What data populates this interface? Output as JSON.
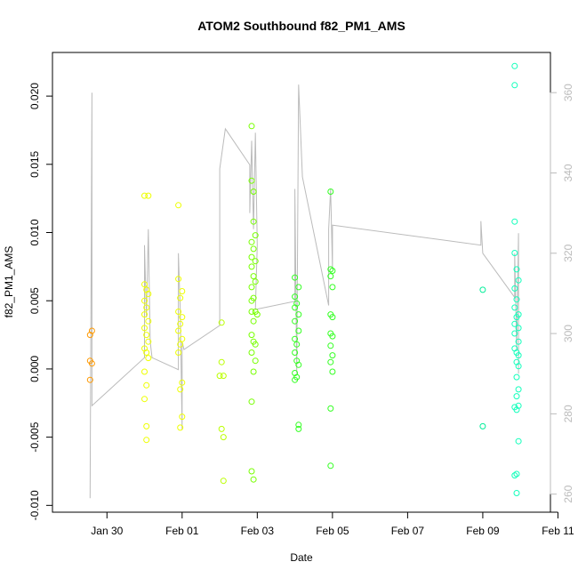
{
  "chart_data": {
    "type": "scatter",
    "title": "ATOM2 Southbound f82_PM1_AMS",
    "xlabel": "Date",
    "ylabel": "f82_PM1_AMS",
    "x_ticks": [
      "Jan 30",
      "Feb 01",
      "Feb 03",
      "Feb 05",
      "Feb 07",
      "Feb 09",
      "Feb 11"
    ],
    "x_range_days": [
      -0.45,
      12.8
    ],
    "y_range": [
      -0.0105,
      0.0232
    ],
    "y_ticks": [
      -0.01,
      -0.005,
      0.0,
      0.005,
      0.01,
      0.015,
      0.02
    ],
    "y_tick_labels": [
      "-0.010",
      "-0.005",
      "0.000",
      "0.005",
      "0.010",
      "0.015",
      "0.020"
    ],
    "y2_range": [
      255.5,
      370
    ],
    "y2_ticks": [
      260,
      280,
      300,
      320,
      340,
      360
    ],
    "y2_tick_labels": [
      "260",
      "280",
      "300",
      "320",
      "340",
      "360"
    ],
    "grid": false,
    "legend": "none",
    "series": [
      {
        "color": "#ff9900",
        "points": [
          [
            0.55,
            0.0025
          ],
          [
            0.6,
            0.0028
          ],
          [
            0.55,
            0.0006
          ],
          [
            0.6,
            0.0004
          ],
          [
            0.55,
            -0.0008
          ]
        ]
      },
      {
        "color": "#eeff00",
        "points": [
          [
            2.0,
            0.0127
          ],
          [
            2.1,
            0.0127
          ],
          [
            2.0,
            0.0062
          ],
          [
            2.05,
            0.0058
          ],
          [
            2.1,
            0.0055
          ],
          [
            2.0,
            0.005
          ],
          [
            2.05,
            0.0045
          ],
          [
            2.0,
            0.004
          ],
          [
            2.1,
            0.0035
          ],
          [
            2.0,
            0.003
          ],
          [
            2.05,
            0.0025
          ],
          [
            2.1,
            0.002
          ],
          [
            2.0,
            0.0015
          ],
          [
            2.05,
            0.0012
          ],
          [
            2.1,
            0.0008
          ],
          [
            2.0,
            -0.0002
          ],
          [
            2.05,
            -0.0012
          ],
          [
            2.0,
            -0.0022
          ],
          [
            2.05,
            -0.0042
          ],
          [
            2.05,
            -0.0052
          ],
          [
            2.9,
            0.012
          ],
          [
            2.9,
            0.0066
          ],
          [
            3.0,
            0.0057
          ],
          [
            2.95,
            0.0052
          ],
          [
            2.9,
            0.0042
          ],
          [
            3.0,
            0.0038
          ],
          [
            2.95,
            0.0033
          ],
          [
            2.9,
            0.0028
          ],
          [
            3.0,
            0.0022
          ],
          [
            2.95,
            0.0018
          ],
          [
            2.9,
            0.0012
          ],
          [
            3.0,
            -0.001
          ],
          [
            2.95,
            -0.0015
          ],
          [
            3.0,
            -0.0035
          ],
          [
            2.95,
            -0.0043
          ]
        ]
      },
      {
        "color": "#bbff00",
        "points": [
          [
            4.05,
            0.0034
          ],
          [
            4.05,
            0.0005
          ],
          [
            4.0,
            -0.0005
          ],
          [
            4.1,
            -0.0005
          ],
          [
            4.05,
            -0.0044
          ],
          [
            4.1,
            -0.005
          ],
          [
            4.1,
            -0.0082
          ]
        ]
      },
      {
        "color": "#77ff00",
        "points": [
          [
            4.85,
            0.0178
          ],
          [
            4.85,
            0.0138
          ],
          [
            4.9,
            0.013
          ],
          [
            4.9,
            0.0108
          ],
          [
            4.95,
            0.0098
          ],
          [
            4.85,
            0.0093
          ],
          [
            4.9,
            0.0088
          ],
          [
            4.85,
            0.0082
          ],
          [
            4.95,
            0.0079
          ],
          [
            4.85,
            0.0075
          ],
          [
            4.9,
            0.0068
          ],
          [
            4.95,
            0.0064
          ],
          [
            4.85,
            0.006
          ],
          [
            4.9,
            0.0052
          ],
          [
            4.85,
            0.005
          ],
          [
            4.95,
            0.0042
          ],
          [
            4.85,
            0.0042
          ],
          [
            5.0,
            0.004
          ],
          [
            4.9,
            0.0035
          ],
          [
            4.85,
            0.0025
          ],
          [
            4.9,
            0.002
          ],
          [
            4.95,
            0.0018
          ],
          [
            4.85,
            0.0012
          ],
          [
            4.95,
            0.0006
          ],
          [
            4.9,
            -0.0002
          ],
          [
            4.85,
            -0.0024
          ],
          [
            4.85,
            -0.0075
          ],
          [
            4.9,
            -0.0081
          ]
        ]
      },
      {
        "color": "#33ff22",
        "points": [
          [
            6.0,
            0.0067
          ],
          [
            6.1,
            0.006
          ],
          [
            6.0,
            0.0053
          ],
          [
            6.05,
            0.0048
          ],
          [
            6.0,
            0.0045
          ],
          [
            6.1,
            0.004
          ],
          [
            6.0,
            0.0035
          ],
          [
            6.1,
            0.0028
          ],
          [
            6.0,
            0.0022
          ],
          [
            6.05,
            0.0018
          ],
          [
            6.0,
            0.0012
          ],
          [
            6.05,
            0.0006
          ],
          [
            6.1,
            0.0003
          ],
          [
            6.0,
            -0.0003
          ],
          [
            6.05,
            -0.0006
          ],
          [
            6.0,
            -0.0008
          ],
          [
            6.1,
            -0.0041
          ],
          [
            6.1,
            -0.0044
          ],
          [
            6.95,
            0.013
          ],
          [
            6.95,
            0.0073
          ],
          [
            7.0,
            0.0072
          ],
          [
            6.95,
            0.0068
          ],
          [
            7.0,
            0.006
          ],
          [
            6.95,
            0.004
          ],
          [
            7.0,
            0.0038
          ],
          [
            6.95,
            0.0026
          ],
          [
            7.0,
            0.0024
          ],
          [
            6.95,
            0.0017
          ],
          [
            7.0,
            0.001
          ],
          [
            6.95,
            0.0005
          ],
          [
            7.0,
            -0.0002
          ],
          [
            6.95,
            -0.0029
          ],
          [
            6.95,
            -0.0071
          ]
        ]
      },
      {
        "color": "#00ee99",
        "points": [
          [
            11.0,
            0.0058
          ],
          [
            11.0,
            -0.0042
          ]
        ]
      },
      {
        "color": "#11ffbb",
        "points": [
          [
            11.85,
            0.0222
          ],
          [
            11.85,
            0.0208
          ],
          [
            11.85,
            0.0108
          ],
          [
            11.85,
            0.0085
          ],
          [
            11.9,
            0.0073
          ],
          [
            11.95,
            0.0065
          ],
          [
            11.85,
            0.0059
          ],
          [
            11.9,
            0.0051
          ],
          [
            11.85,
            0.0045
          ],
          [
            11.95,
            0.004
          ],
          [
            11.9,
            0.0038
          ],
          [
            11.85,
            0.0033
          ],
          [
            11.95,
            0.003
          ],
          [
            11.85,
            0.0026
          ],
          [
            11.95,
            0.002
          ],
          [
            11.85,
            0.0015
          ],
          [
            11.9,
            0.0012
          ],
          [
            11.95,
            0.001
          ],
          [
            11.9,
            0.0005
          ],
          [
            11.95,
            0.0002
          ],
          [
            11.9,
            -0.0006
          ],
          [
            11.95,
            -0.0015
          ],
          [
            11.9,
            -0.002
          ],
          [
            11.85,
            -0.0028
          ],
          [
            11.9,
            -0.003
          ],
          [
            11.95,
            -0.0027
          ],
          [
            11.95,
            -0.0053
          ],
          [
            11.9,
            -0.0077
          ],
          [
            11.85,
            -0.0078
          ],
          [
            11.9,
            -0.0091
          ]
        ]
      }
    ],
    "secondary_line": {
      "color": "#bbbbbb",
      "axis": "right",
      "points": [
        [
          0.55,
          259
        ],
        [
          0.6,
          360
        ],
        [
          0.6,
          282
        ],
        [
          2.0,
          294
        ],
        [
          2.0,
          322
        ],
        [
          2.05,
          304
        ],
        [
          2.1,
          326
        ],
        [
          2.15,
          298
        ],
        [
          2.2,
          294
        ],
        [
          2.9,
          291
        ],
        [
          2.9,
          320
        ],
        [
          2.95,
          306
        ],
        [
          3.0,
          276
        ],
        [
          3.0,
          298
        ],
        [
          3.05,
          296
        ],
        [
          4.0,
          302
        ],
        [
          4.0,
          341
        ],
        [
          4.15,
          351
        ],
        [
          4.8,
          342
        ],
        [
          4.8,
          330
        ],
        [
          4.85,
          348
        ],
        [
          4.9,
          326
        ],
        [
          4.95,
          350
        ],
        [
          5.0,
          322
        ],
        [
          4.95,
          306
        ],
        [
          6.0,
          308
        ],
        [
          6.0,
          336
        ],
        [
          6.05,
          290
        ],
        [
          6.1,
          362
        ],
        [
          6.2,
          339
        ],
        [
          6.9,
          307
        ],
        [
          6.9,
          326
        ],
        [
          6.95,
          336
        ],
        [
          7.0,
          316
        ],
        [
          7.0,
          327
        ],
        [
          10.95,
          322
        ],
        [
          10.95,
          328
        ],
        [
          11.0,
          320
        ],
        [
          11.85,
          309
        ],
        [
          11.85,
          320
        ],
        [
          11.9,
          296
        ],
        [
          11.95,
          325
        ],
        [
          11.95,
          290
        ]
      ]
    }
  }
}
